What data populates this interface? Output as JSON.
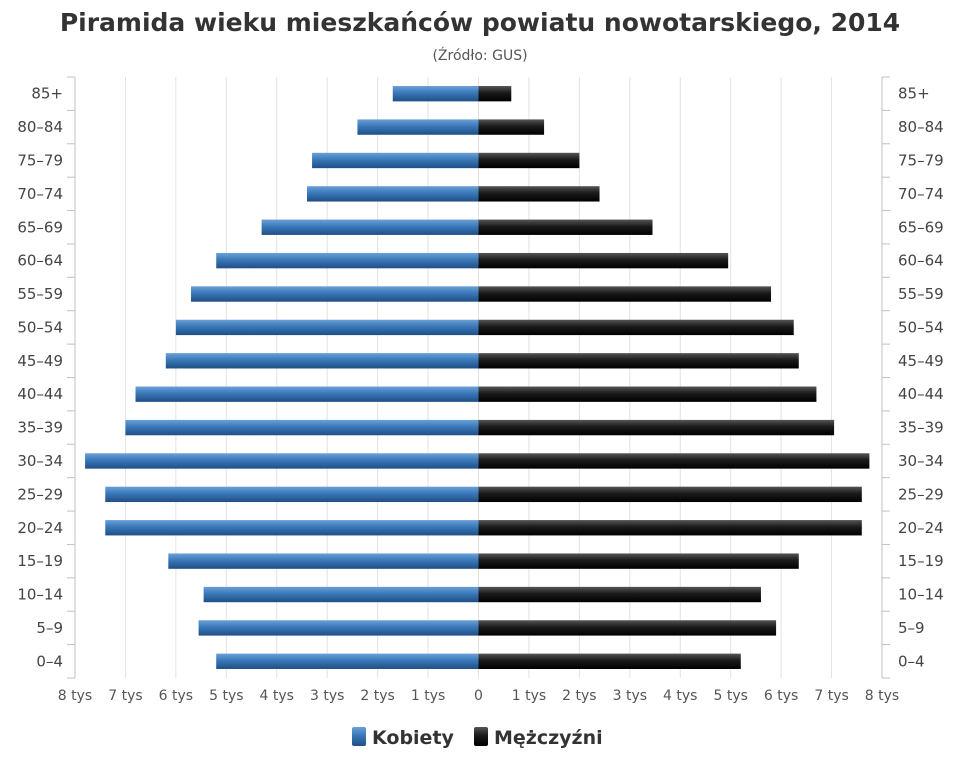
{
  "chart_data": {
    "type": "bar",
    "orientation": "horizontal",
    "title": "Piramida wieku mieszkańców powiatu nowotarskiego, 2014",
    "subtitle": "(Źródło: GUS)",
    "categories": [
      "85+",
      "80–84",
      "75–79",
      "70–74",
      "65–69",
      "60–64",
      "55–59",
      "50–54",
      "45–49",
      "40–44",
      "35–39",
      "30–34",
      "25–29",
      "20–24",
      "15–19",
      "10–14",
      "5–9",
      "0–4"
    ],
    "series": [
      {
        "name": "Kobiety",
        "color": "#3a78b8",
        "values": [
          1700,
          2400,
          3300,
          3400,
          4300,
          5200,
          5700,
          6000,
          6200,
          6800,
          7000,
          7800,
          7400,
          7400,
          6150,
          5450,
          5550,
          5200
        ]
      },
      {
        "name": "Mężczyźni",
        "color": "#1a1a1a",
        "values": [
          650,
          1300,
          2000,
          2400,
          3450,
          4950,
          5800,
          6250,
          6350,
          6700,
          7050,
          7750,
          7600,
          7600,
          6350,
          5600,
          5900,
          5200
        ]
      }
    ],
    "x_ticks": [
      "8 tys",
      "7 tys",
      "6 tys",
      "5 tys",
      "4 tys",
      "3 tys",
      "2 tys",
      "1 tys",
      "0",
      "1 tys",
      "2 tys",
      "3 tys",
      "4 tys",
      "5 tys",
      "6 tys",
      "7 tys",
      "8 tys"
    ],
    "xlim": [
      -8000,
      8000
    ],
    "grid": true,
    "legend_position": "bottom-center"
  }
}
